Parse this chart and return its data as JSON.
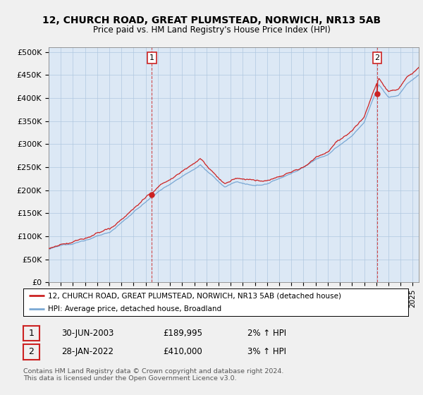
{
  "title": "12, CHURCH ROAD, GREAT PLUMSTEAD, NORWICH, NR13 5AB",
  "subtitle": "Price paid vs. HM Land Registry's House Price Index (HPI)",
  "ylabel_ticks": [
    "£0",
    "£50K",
    "£100K",
    "£150K",
    "£200K",
    "£250K",
    "£300K",
    "£350K",
    "£400K",
    "£450K",
    "£500K"
  ],
  "ytick_values": [
    0,
    50000,
    100000,
    150000,
    200000,
    250000,
    300000,
    350000,
    400000,
    450000,
    500000
  ],
  "ylim": [
    0,
    510000
  ],
  "xlim_start": 1995.0,
  "xlim_end": 2025.5,
  "sale1_x": 2003.5,
  "sale1_y": 189995,
  "sale2_x": 2022.08,
  "sale2_y": 410000,
  "legend_line1": "12, CHURCH ROAD, GREAT PLUMSTEAD, NORWICH, NR13 5AB (detached house)",
  "legend_line2": "HPI: Average price, detached house, Broadland",
  "table_row1": [
    "1",
    "30-JUN-2003",
    "£189,995",
    "2% ↑ HPI"
  ],
  "table_row2": [
    "2",
    "28-JAN-2022",
    "£410,000",
    "3% ↑ HPI"
  ],
  "footnote": "Contains HM Land Registry data © Crown copyright and database right 2024.\nThis data is licensed under the Open Government Licence v3.0.",
  "hpi_color": "#7aa8d4",
  "price_color": "#cc2222",
  "bg_color": "#f0f0f0",
  "plot_bg_color": "#dce8f5",
  "grid_color": "#b0c8e0"
}
